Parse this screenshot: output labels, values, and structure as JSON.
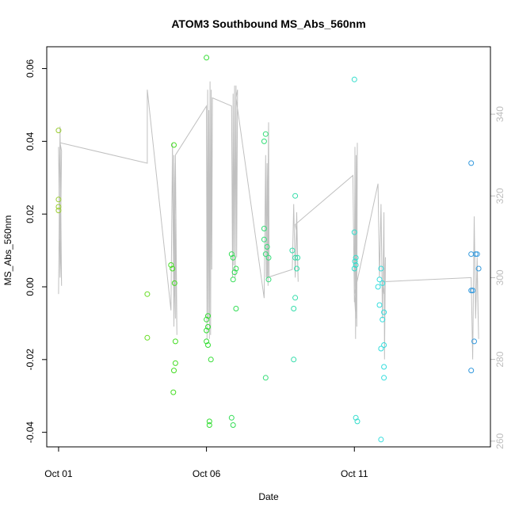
{
  "chart_data": {
    "type": "scatter",
    "title": "ATOM3 Southbound MS_Abs_560nm",
    "xlabel": "Date",
    "ylabel": "MS_Abs_560nm",
    "x_ticks": [
      "Oct 01",
      "Oct 06",
      "Oct 11"
    ],
    "x_tick_days": [
      1,
      6,
      11
    ],
    "xlim": [
      0.6,
      15.6
    ],
    "ylim": [
      -0.044,
      0.066
    ],
    "y_ticks": [
      -0.04,
      -0.02,
      0.0,
      0.02,
      0.04,
      0.06
    ],
    "y_tick_labels": [
      "-0.04",
      "-0.02",
      "0.00",
      "0.02",
      "0.04",
      "0.06"
    ],
    "y2lim": [
      258.6,
      356.5
    ],
    "y2_ticks": [
      260,
      280,
      300,
      320,
      340
    ],
    "y2_tick_labels": [
      "260",
      "280",
      "300",
      "320",
      "340"
    ],
    "grid": false,
    "colors": {
      "frame": "#000000",
      "secondary_axis": "#bdbdbd",
      "trace": "#c0c0c0"
    },
    "points": [
      {
        "x": 1.0,
        "y": 0.043,
        "color": "#9acd32"
      },
      {
        "x": 1.0,
        "y": 0.024,
        "color": "#9acd32"
      },
      {
        "x": 1.0,
        "y": 0.022,
        "color": "#9acd32"
      },
      {
        "x": 1.0,
        "y": 0.021,
        "color": "#9acd32"
      },
      {
        "x": 4.0,
        "y": -0.002,
        "color": "#66dd22"
      },
      {
        "x": 4.0,
        "y": -0.014,
        "color": "#66dd22"
      },
      {
        "x": 4.8,
        "y": 0.006,
        "color": "#44dd22"
      },
      {
        "x": 4.85,
        "y": 0.005,
        "color": "#44dd22"
      },
      {
        "x": 4.9,
        "y": 0.039,
        "color": "#44dd22"
      },
      {
        "x": 4.92,
        "y": 0.001,
        "color": "#44dd22"
      },
      {
        "x": 4.95,
        "y": -0.015,
        "color": "#44dd22"
      },
      {
        "x": 4.95,
        "y": -0.021,
        "color": "#44dd22"
      },
      {
        "x": 4.9,
        "y": -0.023,
        "color": "#44dd22"
      },
      {
        "x": 4.88,
        "y": -0.029,
        "color": "#44dd22"
      },
      {
        "x": 6.0,
        "y": 0.063,
        "color": "#33dd33"
      },
      {
        "x": 6.05,
        "y": -0.008,
        "color": "#33dd33"
      },
      {
        "x": 6.0,
        "y": -0.009,
        "color": "#33dd33"
      },
      {
        "x": 6.05,
        "y": -0.011,
        "color": "#33dd33"
      },
      {
        "x": 6.0,
        "y": -0.012,
        "color": "#33dd33"
      },
      {
        "x": 6.0,
        "y": -0.015,
        "color": "#33dd33"
      },
      {
        "x": 6.05,
        "y": -0.016,
        "color": "#33dd33"
      },
      {
        "x": 6.15,
        "y": -0.02,
        "color": "#33dd33"
      },
      {
        "x": 6.1,
        "y": -0.037,
        "color": "#33dd33"
      },
      {
        "x": 6.1,
        "y": -0.038,
        "color": "#33dd33"
      },
      {
        "x": 6.85,
        "y": 0.009,
        "color": "#33dd55"
      },
      {
        "x": 6.9,
        "y": 0.008,
        "color": "#33dd55"
      },
      {
        "x": 7.0,
        "y": 0.005,
        "color": "#33dd55"
      },
      {
        "x": 6.95,
        "y": 0.004,
        "color": "#33dd55"
      },
      {
        "x": 6.9,
        "y": 0.002,
        "color": "#33dd55"
      },
      {
        "x": 7.0,
        "y": -0.006,
        "color": "#33dd55"
      },
      {
        "x": 6.85,
        "y": -0.036,
        "color": "#33dd55"
      },
      {
        "x": 6.9,
        "y": -0.038,
        "color": "#33dd55"
      },
      {
        "x": 8.0,
        "y": 0.042,
        "color": "#33dd77"
      },
      {
        "x": 7.95,
        "y": 0.04,
        "color": "#33dd77"
      },
      {
        "x": 7.95,
        "y": 0.016,
        "color": "#33dd77"
      },
      {
        "x": 7.95,
        "y": 0.013,
        "color": "#33dd77"
      },
      {
        "x": 8.05,
        "y": 0.011,
        "color": "#33dd77"
      },
      {
        "x": 8.0,
        "y": 0.009,
        "color": "#33dd77"
      },
      {
        "x": 8.1,
        "y": 0.008,
        "color": "#33dd77"
      },
      {
        "x": 8.1,
        "y": 0.002,
        "color": "#33dd77"
      },
      {
        "x": 8.0,
        "y": -0.025,
        "color": "#33dd77"
      },
      {
        "x": 9.0,
        "y": 0.025,
        "color": "#33ddaa"
      },
      {
        "x": 8.9,
        "y": 0.01,
        "color": "#33ddaa"
      },
      {
        "x": 9.0,
        "y": 0.008,
        "color": "#33ddaa"
      },
      {
        "x": 9.08,
        "y": 0.008,
        "color": "#33ddaa"
      },
      {
        "x": 9.05,
        "y": 0.005,
        "color": "#33ddaa"
      },
      {
        "x": 9.0,
        "y": -0.003,
        "color": "#33ddaa"
      },
      {
        "x": 8.95,
        "y": -0.006,
        "color": "#33ddaa"
      },
      {
        "x": 8.95,
        "y": -0.02,
        "color": "#33ddaa"
      },
      {
        "x": 11.0,
        "y": 0.057,
        "color": "#33ddcc"
      },
      {
        "x": 11.0,
        "y": 0.015,
        "color": "#33ddcc"
      },
      {
        "x": 11.05,
        "y": 0.008,
        "color": "#33ddcc"
      },
      {
        "x": 11.02,
        "y": 0.007,
        "color": "#33ddcc"
      },
      {
        "x": 11.05,
        "y": 0.006,
        "color": "#33ddcc"
      },
      {
        "x": 11.0,
        "y": 0.005,
        "color": "#33ddcc"
      },
      {
        "x": 11.05,
        "y": -0.036,
        "color": "#33ddcc"
      },
      {
        "x": 11.1,
        "y": -0.037,
        "color": "#33ddcc"
      },
      {
        "x": 11.85,
        "y": 0.002,
        "color": "#33dddd"
      },
      {
        "x": 11.8,
        "y": 0.0,
        "color": "#33dddd"
      },
      {
        "x": 11.95,
        "y": 0.001,
        "color": "#33dddd"
      },
      {
        "x": 11.9,
        "y": 0.005,
        "color": "#33dddd"
      },
      {
        "x": 11.85,
        "y": -0.005,
        "color": "#33dddd"
      },
      {
        "x": 12.0,
        "y": -0.007,
        "color": "#33dddd"
      },
      {
        "x": 11.95,
        "y": -0.009,
        "color": "#33dddd"
      },
      {
        "x": 12.0,
        "y": -0.016,
        "color": "#33dddd"
      },
      {
        "x": 11.9,
        "y": -0.017,
        "color": "#33dddd"
      },
      {
        "x": 12.0,
        "y": -0.022,
        "color": "#33dddd"
      },
      {
        "x": 12.0,
        "y": -0.025,
        "color": "#33dddd"
      },
      {
        "x": 11.9,
        "y": -0.042,
        "color": "#33dddd"
      },
      {
        "x": 14.95,
        "y": 0.034,
        "color": "#3399dd"
      },
      {
        "x": 14.95,
        "y": 0.009,
        "color": "#3399dd"
      },
      {
        "x": 15.1,
        "y": 0.009,
        "color": "#3399dd"
      },
      {
        "x": 15.15,
        "y": 0.009,
        "color": "#3399dd"
      },
      {
        "x": 15.2,
        "y": 0.005,
        "color": "#3399dd"
      },
      {
        "x": 14.95,
        "y": -0.001,
        "color": "#3399dd"
      },
      {
        "x": 15.0,
        "y": -0.001,
        "color": "#3399dd"
      },
      {
        "x": 15.05,
        "y": -0.015,
        "color": "#3399dd"
      },
      {
        "x": 14.95,
        "y": -0.023,
        "color": "#3399dd"
      }
    ],
    "secondary_line": {
      "y_axis": "right",
      "color": "#c0c0c0",
      "x": [
        1.0,
        1.05,
        1.1,
        1.0,
        1.05,
        1.1,
        1.05,
        4.0,
        4.0,
        4.8,
        4.85,
        4.9,
        4.95,
        4.9,
        4.85,
        4.95,
        4.9,
        5.0,
        4.95,
        6.0,
        6.02,
        6.04,
        6.06,
        6.08,
        6.1,
        6.12,
        6.14,
        6.16,
        6.18,
        6.2,
        6.85,
        6.88,
        6.9,
        6.92,
        6.95,
        6.97,
        7.0,
        7.02,
        7.05,
        7.0,
        7.95,
        8.0,
        8.02,
        8.05,
        8.08,
        8.1,
        8.12,
        8.1,
        8.05,
        8.9,
        8.95,
        9.0,
        9.05,
        9.1,
        9.05,
        9.0,
        10.95,
        11.0,
        11.02,
        11.04,
        11.06,
        11.08,
        11.1,
        11.05,
        11.0,
        11.8,
        11.85,
        11.9,
        11.95,
        12.0,
        12.02,
        12.05,
        12.0,
        11.95,
        14.95,
        15.0,
        15.05,
        15.1,
        15.15,
        15.2,
        15.15
      ],
      "y": [
        296,
        337,
        298,
        332,
        300,
        331,
        333,
        328,
        346,
        292,
        333,
        288,
        328,
        292,
        331,
        290,
        330,
        286,
        330,
        342,
        285,
        346,
        290,
        341,
        285,
        348,
        286,
        346,
        302,
        344,
        342,
        300,
        345,
        303,
        347,
        300,
        347,
        305,
        346,
        344,
        295,
        330,
        300,
        328,
        298,
        336,
        300,
        338,
        300,
        302,
        318,
        300,
        316,
        299,
        311,
        313,
        325,
        294,
        332,
        285,
        330,
        288,
        333,
        290,
        296,
        323,
        300,
        318,
        290,
        316,
        280,
        305,
        296,
        299,
        300,
        280,
        315,
        290,
        305,
        285,
        302
      ]
    }
  }
}
